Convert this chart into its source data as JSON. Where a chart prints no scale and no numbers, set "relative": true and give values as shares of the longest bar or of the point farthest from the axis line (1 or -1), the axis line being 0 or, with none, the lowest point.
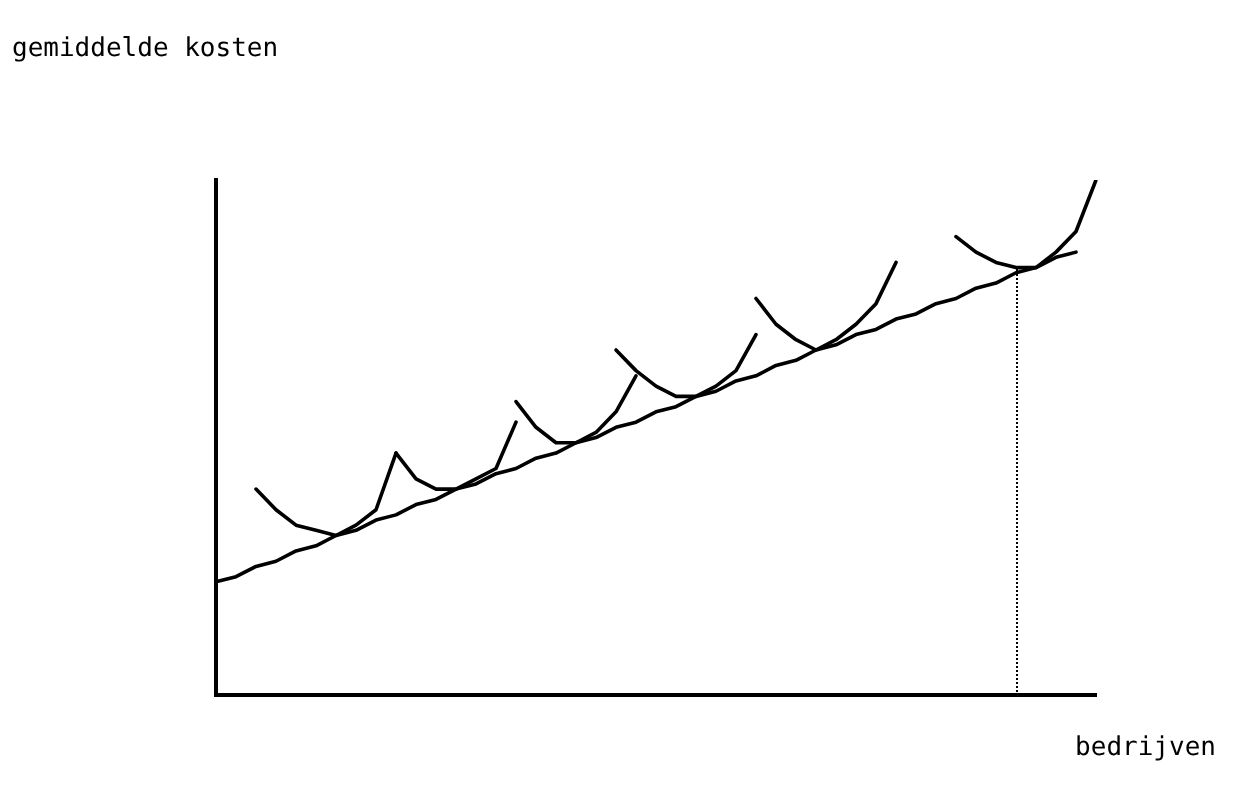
{
  "chart_data": {
    "type": "line",
    "relative": true,
    "xlabel": "bedrijven",
    "ylabel": "gemiddelde kosten",
    "grid": false,
    "legend": false,
    "marker": "none",
    "categories": [
      null,
      null,
      null,
      null,
      null,
      null,
      null,
      null,
      null,
      null,
      null,
      null,
      null,
      null,
      null,
      null,
      null,
      null,
      null,
      null,
      null,
      null,
      null,
      null,
      null,
      null,
      null,
      null,
      null,
      null,
      null,
      null,
      null,
      null,
      null,
      null,
      null,
      null,
      null,
      null,
      null,
      null,
      null,
      null,
      null
    ],
    "series": [
      {
        "color": "#000000",
        "values": [
          0.22,
          0.23,
          0.25,
          0.26,
          0.28,
          0.29,
          0.31,
          0.32,
          0.34,
          0.35,
          0.37,
          0.38,
          0.4,
          0.41,
          0.43,
          0.44,
          0.46,
          0.47,
          0.49,
          0.5,
          0.52,
          0.53,
          0.55,
          0.56,
          0.58,
          0.59,
          0.61,
          0.62,
          0.64,
          0.65,
          0.67,
          0.68,
          0.7,
          0.71,
          0.73,
          0.74,
          0.76,
          0.77,
          0.79,
          0.8,
          0.82,
          0.83,
          0.85,
          0.86,
          null
        ]
      },
      {
        "color": "#000000",
        "values": [
          null,
          null,
          0.4,
          0.36,
          0.33,
          0.32,
          0.31,
          0.33,
          0.36,
          0.47,
          null,
          null,
          null,
          null,
          null,
          null,
          null,
          null,
          null,
          null,
          null,
          null,
          null,
          null,
          null,
          null,
          null,
          null,
          null,
          null,
          null,
          null,
          null,
          null,
          null,
          null,
          null,
          null,
          null,
          null,
          null,
          null,
          null,
          null,
          null
        ]
      },
      {
        "color": "#000000",
        "values": [
          null,
          null,
          null,
          null,
          null,
          null,
          null,
          null,
          null,
          0.47,
          0.42,
          0.4,
          0.4,
          0.42,
          0.44,
          0.53,
          null,
          null,
          null,
          null,
          null,
          null,
          null,
          null,
          null,
          null,
          null,
          null,
          null,
          null,
          null,
          null,
          null,
          null,
          null,
          null,
          null,
          null,
          null,
          null,
          null,
          null,
          null,
          null,
          null
        ]
      },
      {
        "color": "#000000",
        "values": [
          null,
          null,
          null,
          null,
          null,
          null,
          null,
          null,
          null,
          null,
          null,
          null,
          null,
          null,
          null,
          0.57,
          0.52,
          0.49,
          0.49,
          0.51,
          0.55,
          0.62,
          null,
          null,
          null,
          null,
          null,
          null,
          null,
          null,
          null,
          null,
          null,
          null,
          null,
          null,
          null,
          null,
          null,
          null,
          null,
          null,
          null,
          null,
          null
        ]
      },
      {
        "color": "#000000",
        "values": [
          null,
          null,
          null,
          null,
          null,
          null,
          null,
          null,
          null,
          null,
          null,
          null,
          null,
          null,
          null,
          null,
          null,
          null,
          null,
          null,
          0.67,
          0.63,
          0.6,
          0.58,
          0.58,
          0.6,
          0.63,
          0.7,
          null,
          null,
          null,
          null,
          null,
          null,
          null,
          null,
          null,
          null,
          null,
          null,
          null,
          null,
          null,
          null,
          null
        ]
      },
      {
        "color": "#000000",
        "values": [
          null,
          null,
          null,
          null,
          null,
          null,
          null,
          null,
          null,
          null,
          null,
          null,
          null,
          null,
          null,
          null,
          null,
          null,
          null,
          null,
          null,
          null,
          null,
          null,
          null,
          null,
          null,
          0.77,
          0.72,
          0.69,
          0.67,
          0.69,
          0.72,
          0.76,
          0.84,
          null,
          null,
          null,
          null,
          null,
          null,
          null,
          null,
          null,
          null
        ]
      },
      {
        "color": "#000000",
        "values": [
          null,
          null,
          null,
          null,
          null,
          null,
          null,
          null,
          null,
          null,
          null,
          null,
          null,
          null,
          null,
          null,
          null,
          null,
          null,
          null,
          null,
          null,
          null,
          null,
          null,
          null,
          null,
          null,
          null,
          null,
          null,
          null,
          null,
          null,
          null,
          null,
          null,
          0.89,
          0.86,
          0.84,
          0.83,
          0.83,
          0.86,
          0.9,
          1.0
        ]
      }
    ]
  }
}
